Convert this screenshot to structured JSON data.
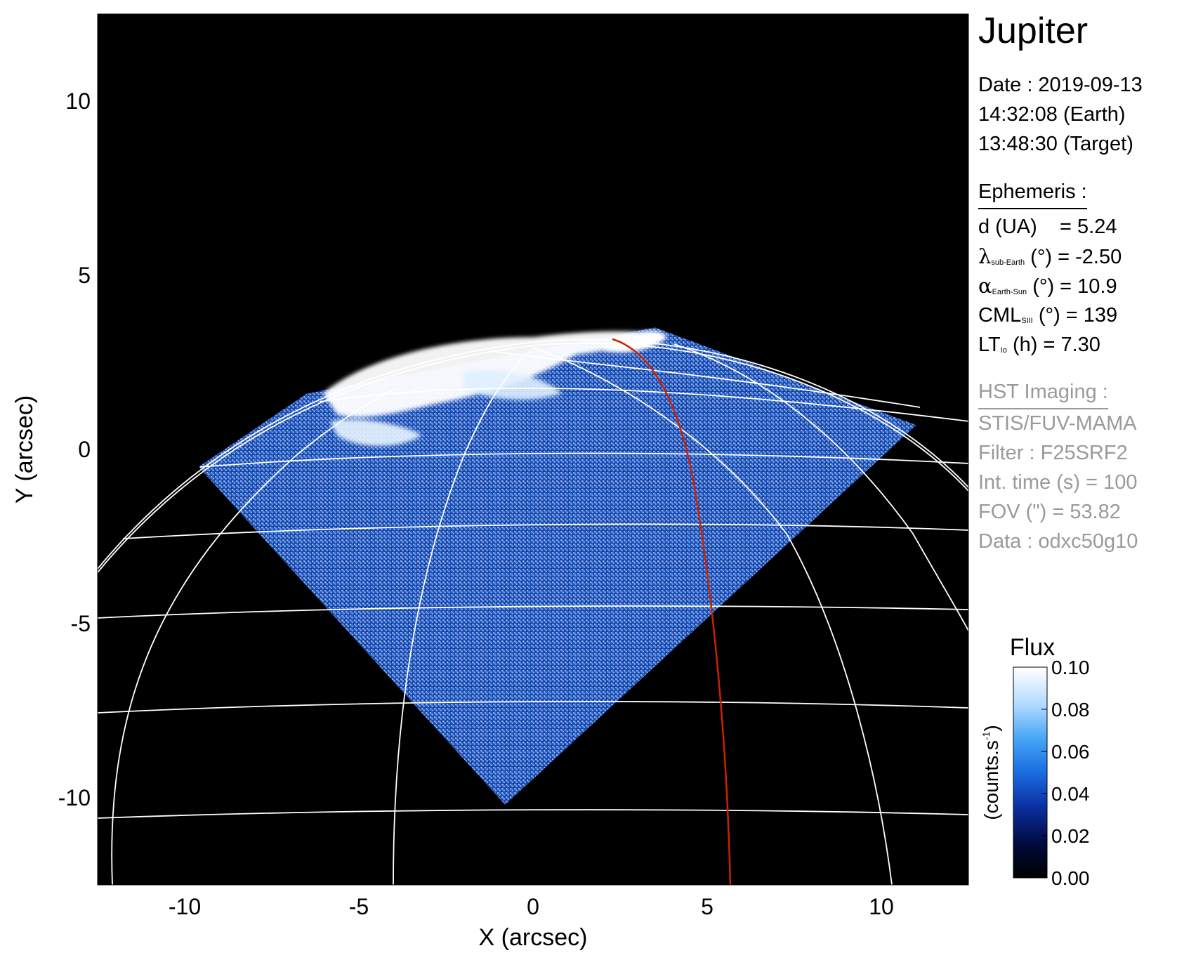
{
  "chart_data": {
    "type": "heatmap",
    "title": "Jupiter",
    "xlabel": "X (arcsec)",
    "ylabel": "Y (arcsec)",
    "xlim": [
      -12.5,
      12.5
    ],
    "ylim": [
      -12.5,
      12.5
    ],
    "x_ticks": [
      "-10",
      "-5",
      "0",
      "5",
      "10"
    ],
    "y_ticks": [
      "10",
      "5",
      "0",
      "-5",
      "-10"
    ],
    "colorbar": {
      "title": "Flux",
      "label": "(counts.s",
      "label_sup": "-1",
      "label_end": ")",
      "range": [
        0.0,
        0.1
      ],
      "ticks": [
        "0.00",
        "0.02",
        "0.04",
        "0.06",
        "0.08",
        "0.10"
      ],
      "colors": [
        "#000000",
        "#000a3c",
        "#0a2e9e",
        "#1a6ce0",
        "#46a6f5",
        "#b6dcff",
        "#ffffff"
      ]
    },
    "image_region": {
      "description_vertices_arcsec": [
        [
          -9.6,
          -0.5
        ],
        [
          -0.8,
          -10.2
        ],
        [
          11.0,
          0.7
        ],
        [
          3.5,
          3.5
        ],
        [
          -6.5,
          1.6
        ]
      ]
    },
    "footprint_line_color": "#cc2200",
    "grid_color": "#ffffff"
  },
  "info": {
    "date": "Date : 2019-09-13",
    "time_earth": "14:32:08 (Earth)",
    "time_target": "13:48:30 (Target)",
    "ephemeris_title": "Ephemeris :",
    "d_label": "d (UA)    = 5.24",
    "lambda_symbol": "λ",
    "lambda_sub": "sub-Earth",
    "lambda_value": "(°) = -2.50",
    "alpha_symbol": "α",
    "alpha_sub": "Earth-Sun",
    "alpha_value": "(°) = 10.9",
    "cml_symbol": "CML",
    "cml_sub": "SIII",
    "cml_value": "(°) = 139",
    "lt_symbol": "LT",
    "lt_sub": "Io",
    "lt_value": "(h) = 7.30",
    "hst_title": "HST Imaging :",
    "instrument": "STIS/FUV-MAMA",
    "filter": "Filter : F25SRF2",
    "int_time": "Int. time (s) = 100",
    "fov": "FOV (\") = 53.82",
    "dataset": "Data : odxc50g10"
  }
}
